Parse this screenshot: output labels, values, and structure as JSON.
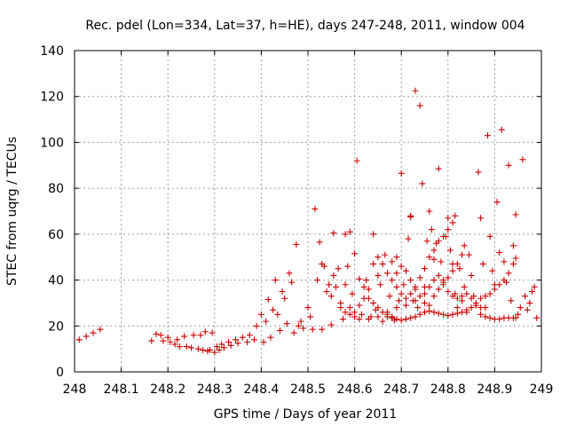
{
  "chart_data": {
    "type": "scatter",
    "title": "Rec. pdel (Lon=334, Lat=37, h=HE), days 247-248, 2011, window 004",
    "xlabel": "GPS time / Days of year 2011",
    "ylabel": "STEC from uqrg / TECUs",
    "xlim": [
      248,
      249
    ],
    "ylim": [
      0,
      140
    ],
    "x_ticks": [
      "248",
      "248.1",
      "248.2",
      "248.3",
      "248.4",
      "248.5",
      "248.6",
      "248.7",
      "248.8",
      "248.9",
      "249"
    ],
    "y_ticks": [
      "0",
      "20",
      "40",
      "60",
      "80",
      "100",
      "120",
      "140"
    ],
    "grid": true,
    "marker": "plus",
    "color": "#cc0000",
    "points": [
      [
        248.01,
        14
      ],
      [
        248.025,
        15.5
      ],
      [
        248.04,
        17
      ],
      [
        248.055,
        18.5
      ],
      [
        248.165,
        13.5
      ],
      [
        248.175,
        16.5
      ],
      [
        248.185,
        16
      ],
      [
        248.19,
        13.5
      ],
      [
        248.2,
        15
      ],
      [
        248.205,
        13
      ],
      [
        248.215,
        12
      ],
      [
        248.22,
        14
      ],
      [
        248.225,
        11
      ],
      [
        248.235,
        15.5
      ],
      [
        248.24,
        11
      ],
      [
        248.25,
        10.5
      ],
      [
        248.255,
        16
      ],
      [
        248.265,
        10
      ],
      [
        248.27,
        16
      ],
      [
        248.275,
        9.5
      ],
      [
        248.28,
        17.5
      ],
      [
        248.285,
        9
      ],
      [
        248.29,
        9.5
      ],
      [
        248.295,
        17
      ],
      [
        248.3,
        8.5
      ],
      [
        248.305,
        11
      ],
      [
        248.31,
        9.5
      ],
      [
        248.315,
        12
      ],
      [
        248.32,
        10.5
      ],
      [
        248.33,
        13
      ],
      [
        248.335,
        11.5
      ],
      [
        248.345,
        14
      ],
      [
        248.35,
        12.5
      ],
      [
        248.36,
        15
      ],
      [
        248.37,
        13
      ],
      [
        248.375,
        16
      ],
      [
        248.385,
        14
      ],
      [
        248.39,
        20
      ],
      [
        248.4,
        25
      ],
      [
        248.405,
        13
      ],
      [
        248.41,
        22
      ],
      [
        248.415,
        31.5
      ],
      [
        248.42,
        15
      ],
      [
        248.425,
        27
      ],
      [
        248.43,
        40
      ],
      [
        248.435,
        25
      ],
      [
        248.44,
        18
      ],
      [
        248.445,
        35
      ],
      [
        248.45,
        32
      ],
      [
        248.455,
        21
      ],
      [
        248.46,
        43
      ],
      [
        248.465,
        39
      ],
      [
        248.47,
        17
      ],
      [
        248.475,
        55.5
      ],
      [
        248.48,
        20
      ],
      [
        248.485,
        22
      ],
      [
        248.49,
        19
      ],
      [
        248.5,
        28
      ],
      [
        248.505,
        24
      ],
      [
        248.51,
        18.5
      ],
      [
        248.515,
        71
      ],
      [
        248.52,
        40
      ],
      [
        248.525,
        56.5
      ],
      [
        248.53,
        47
      ],
      [
        248.53,
        18.5
      ],
      [
        248.535,
        46
      ],
      [
        248.54,
        35
      ],
      [
        248.545,
        38
      ],
      [
        248.55,
        33
      ],
      [
        248.55,
        20.5
      ],
      [
        248.555,
        42
      ],
      [
        248.56,
        37
      ],
      [
        248.565,
        45
      ],
      [
        248.57,
        30
      ],
      [
        248.575,
        23
      ],
      [
        248.58,
        60
      ],
      [
        248.58,
        38
      ],
      [
        248.585,
        46
      ],
      [
        248.59,
        28
      ],
      [
        248.595,
        34
      ],
      [
        248.6,
        26
      ],
      [
        248.605,
        92
      ],
      [
        248.61,
        29
      ],
      [
        248.615,
        25
      ],
      [
        248.62,
        32
      ],
      [
        248.625,
        40
      ],
      [
        248.63,
        36
      ],
      [
        248.635,
        24
      ],
      [
        248.64,
        60
      ],
      [
        248.645,
        27
      ],
      [
        248.65,
        42
      ],
      [
        248.655,
        38
      ],
      [
        248.66,
        22
      ],
      [
        248.665,
        51
      ],
      [
        248.67,
        24
      ],
      [
        248.675,
        33
      ],
      [
        248.68,
        23.5
      ],
      [
        248.685,
        22.5
      ],
      [
        248.69,
        43
      ],
      [
        248.695,
        31
      ],
      [
        248.7,
        86.5
      ],
      [
        248.705,
        38
      ],
      [
        248.71,
        23
      ],
      [
        248.715,
        58
      ],
      [
        248.72,
        68
      ],
      [
        248.72,
        67.5
      ],
      [
        248.725,
        31
      ],
      [
        248.73,
        122.5
      ],
      [
        248.735,
        28
      ],
      [
        248.74,
        116
      ],
      [
        248.745,
        82
      ],
      [
        248.75,
        37
      ],
      [
        248.755,
        57
      ],
      [
        248.76,
        70
      ],
      [
        248.765,
        62
      ],
      [
        248.77,
        49
      ],
      [
        248.775,
        56
      ],
      [
        248.78,
        88.5
      ],
      [
        248.785,
        48
      ],
      [
        248.79,
        40
      ],
      [
        248.795,
        59
      ],
      [
        248.8,
        67
      ],
      [
        248.805,
        53
      ],
      [
        248.81,
        47
      ],
      [
        248.815,
        34
      ],
      [
        248.82,
        28
      ],
      [
        248.825,
        45
      ],
      [
        248.83,
        31
      ],
      [
        248.835,
        37
      ],
      [
        248.84,
        26
      ],
      [
        248.845,
        51
      ],
      [
        248.85,
        42
      ],
      [
        248.855,
        33
      ],
      [
        248.86,
        29
      ],
      [
        248.865,
        87
      ],
      [
        248.87,
        67
      ],
      [
        248.875,
        47
      ],
      [
        248.88,
        28
      ],
      [
        248.885,
        103
      ],
      [
        248.89,
        59
      ],
      [
        248.895,
        44
      ],
      [
        248.9,
        38
      ],
      [
        248.905,
        74
      ],
      [
        248.91,
        52
      ],
      [
        248.915,
        105.5
      ],
      [
        248.92,
        48
      ],
      [
        248.925,
        39
      ],
      [
        248.93,
        90
      ],
      [
        248.935,
        31
      ],
      [
        248.94,
        55
      ],
      [
        248.945,
        68.5
      ],
      [
        248.95,
        25
      ],
      [
        248.955,
        28
      ],
      [
        248.96,
        92.5
      ],
      [
        248.965,
        33
      ],
      [
        248.97,
        27
      ],
      [
        248.975,
        30
      ],
      [
        248.98,
        35
      ],
      [
        248.985,
        37
      ],
      [
        248.99,
        23.5
      ],
      [
        248.555,
        60.5
      ],
      [
        248.59,
        61
      ],
      [
        248.6,
        51.5
      ],
      [
        248.61,
        40.5
      ],
      [
        248.62,
        37
      ],
      [
        248.63,
        32
      ],
      [
        248.64,
        30
      ],
      [
        248.65,
        28
      ],
      [
        248.66,
        26
      ],
      [
        248.67,
        25
      ],
      [
        248.68,
        24
      ],
      [
        248.69,
        23
      ],
      [
        248.7,
        22.5
      ],
      [
        248.71,
        23
      ],
      [
        248.72,
        23.5
      ],
      [
        248.73,
        24
      ],
      [
        248.74,
        25
      ],
      [
        248.75,
        26
      ],
      [
        248.76,
        26.5
      ],
      [
        248.77,
        26
      ],
      [
        248.78,
        25.5
      ],
      [
        248.79,
        25
      ],
      [
        248.8,
        24.5
      ],
      [
        248.81,
        25
      ],
      [
        248.82,
        25.5
      ],
      [
        248.83,
        26
      ],
      [
        248.84,
        27
      ],
      [
        248.85,
        28
      ],
      [
        248.86,
        30
      ],
      [
        248.87,
        32
      ],
      [
        248.88,
        33
      ],
      [
        248.89,
        34
      ],
      [
        248.9,
        36
      ],
      [
        248.91,
        38
      ],
      [
        248.92,
        40
      ],
      [
        248.93,
        43
      ],
      [
        248.94,
        47
      ],
      [
        248.945,
        49.5
      ],
      [
        248.87,
        25
      ],
      [
        248.88,
        24
      ],
      [
        248.89,
        23.5
      ],
      [
        248.9,
        23
      ],
      [
        248.91,
        23
      ],
      [
        248.92,
        23.5
      ],
      [
        248.93,
        23.5
      ],
      [
        248.94,
        23.5
      ],
      [
        248.945,
        23.5
      ],
      [
        248.57,
        28
      ],
      [
        248.58,
        26
      ],
      [
        248.59,
        25
      ],
      [
        248.6,
        24
      ],
      [
        248.61,
        23
      ],
      [
        248.63,
        23
      ],
      [
        248.65,
        24
      ],
      [
        248.67,
        26
      ],
      [
        248.69,
        28
      ],
      [
        248.71,
        29
      ],
      [
        248.73,
        31
      ],
      [
        248.75,
        34
      ],
      [
        248.76,
        37
      ],
      [
        248.77,
        40
      ],
      [
        248.78,
        42
      ],
      [
        248.79,
        39
      ],
      [
        248.8,
        35
      ],
      [
        248.81,
        33
      ],
      [
        248.82,
        32
      ],
      [
        248.83,
        33
      ],
      [
        248.84,
        34
      ],
      [
        248.85,
        32
      ],
      [
        248.86,
        29
      ],
      [
        248.87,
        28
      ],
      [
        248.68,
        48
      ],
      [
        248.69,
        50
      ],
      [
        248.7,
        46
      ],
      [
        248.71,
        44
      ],
      [
        248.72,
        40
      ],
      [
        248.73,
        36
      ],
      [
        248.74,
        33
      ],
      [
        248.75,
        30
      ],
      [
        248.76,
        29
      ],
      [
        248.77,
        33
      ],
      [
        248.78,
        36
      ],
      [
        248.79,
        38
      ],
      [
        248.8,
        41
      ],
      [
        248.81,
        44
      ],
      [
        248.82,
        47
      ],
      [
        248.83,
        51
      ],
      [
        248.835,
        55
      ],
      [
        248.64,
        47
      ],
      [
        248.65,
        50
      ],
      [
        248.66,
        47
      ],
      [
        248.67,
        43
      ],
      [
        248.68,
        40
      ],
      [
        248.69,
        37
      ],
      [
        248.7,
        34
      ],
      [
        248.71,
        32
      ],
      [
        248.72,
        34
      ],
      [
        248.73,
        37
      ],
      [
        248.74,
        41
      ],
      [
        248.75,
        45
      ],
      [
        248.76,
        50
      ],
      [
        248.77,
        53
      ],
      [
        248.78,
        57
      ],
      [
        248.79,
        59
      ],
      [
        248.8,
        62
      ],
      [
        248.81,
        65
      ],
      [
        248.815,
        68
      ]
    ]
  }
}
